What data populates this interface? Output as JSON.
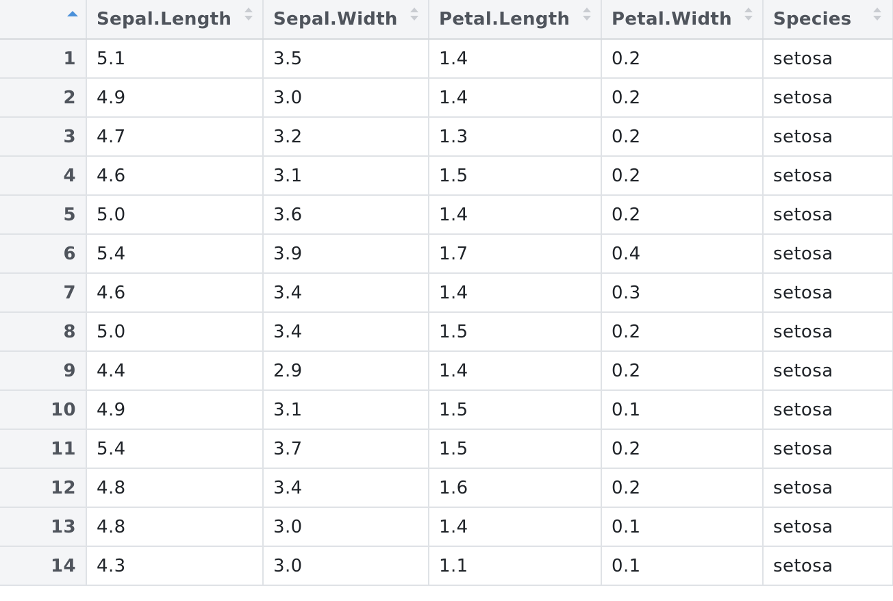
{
  "table": {
    "columns": [
      {
        "label": "Sepal.Length",
        "icon": "sort-both-icon"
      },
      {
        "label": "Sepal.Width",
        "icon": "sort-both-icon"
      },
      {
        "label": "Petal.Length",
        "icon": "sort-both-icon"
      },
      {
        "label": "Petal.Width",
        "icon": "sort-both-icon"
      },
      {
        "label": "Species",
        "icon": "sort-both-icon"
      }
    ],
    "index_sort_icon": "sort-ascending-icon",
    "accent_color": "#4a90d9",
    "rows": [
      {
        "n": "1",
        "cells": [
          "5.1",
          "3.5",
          "1.4",
          "0.2",
          "setosa"
        ]
      },
      {
        "n": "2",
        "cells": [
          "4.9",
          "3.0",
          "1.4",
          "0.2",
          "setosa"
        ]
      },
      {
        "n": "3",
        "cells": [
          "4.7",
          "3.2",
          "1.3",
          "0.2",
          "setosa"
        ]
      },
      {
        "n": "4",
        "cells": [
          "4.6",
          "3.1",
          "1.5",
          "0.2",
          "setosa"
        ]
      },
      {
        "n": "5",
        "cells": [
          "5.0",
          "3.6",
          "1.4",
          "0.2",
          "setosa"
        ]
      },
      {
        "n": "6",
        "cells": [
          "5.4",
          "3.9",
          "1.7",
          "0.4",
          "setosa"
        ]
      },
      {
        "n": "7",
        "cells": [
          "4.6",
          "3.4",
          "1.4",
          "0.3",
          "setosa"
        ]
      },
      {
        "n": "8",
        "cells": [
          "5.0",
          "3.4",
          "1.5",
          "0.2",
          "setosa"
        ]
      },
      {
        "n": "9",
        "cells": [
          "4.4",
          "2.9",
          "1.4",
          "0.2",
          "setosa"
        ]
      },
      {
        "n": "10",
        "cells": [
          "4.9",
          "3.1",
          "1.5",
          "0.1",
          "setosa"
        ]
      },
      {
        "n": "11",
        "cells": [
          "5.4",
          "3.7",
          "1.5",
          "0.2",
          "setosa"
        ]
      },
      {
        "n": "12",
        "cells": [
          "4.8",
          "3.4",
          "1.6",
          "0.2",
          "setosa"
        ]
      },
      {
        "n": "13",
        "cells": [
          "4.8",
          "3.0",
          "1.4",
          "0.1",
          "setosa"
        ]
      },
      {
        "n": "14",
        "cells": [
          "4.3",
          "3.0",
          "1.1",
          "0.1",
          "setosa"
        ]
      }
    ]
  }
}
